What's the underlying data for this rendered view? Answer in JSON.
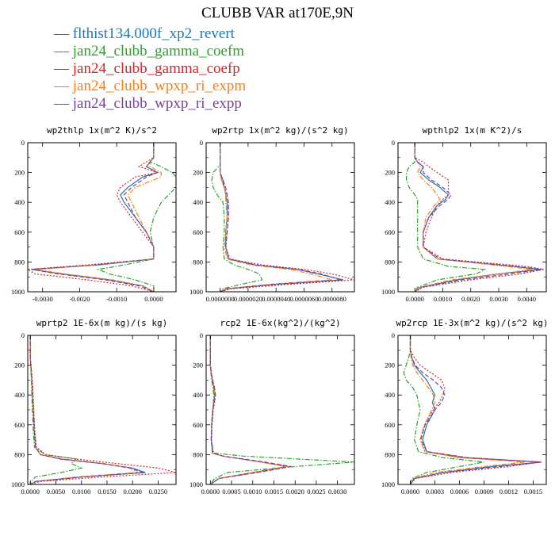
{
  "title": "CLUBB VAR at170E,9N",
  "legend": [
    {
      "name": "flthist134.000f_xp2_revert",
      "color": "#1f77b4",
      "dash": "solid"
    },
    {
      "name": "jan24_clubb_gamma_coefm",
      "color": "#2ca02c",
      "dash": "dashdot"
    },
    {
      "name": "jan24_clubb_gamma_coefp",
      "color": "#d62728",
      "dash": "dot"
    },
    {
      "name": "jan24_clubb_wpxp_ri_expm",
      "color": "#ff7f0e",
      "dash": "dashdot"
    },
    {
      "name": "jan24_clubb_wpxp_ri_expp",
      "color": "#7b3fa0",
      "dash": "dash"
    }
  ],
  "chart_data": [
    {
      "type": "line",
      "title": "wp2thlp  1x(m^2 K)/s^2",
      "xlim": [
        -0.0034,
        0.0006
      ],
      "ylim": [
        0,
        1000
      ],
      "xticks": [
        "-0.0030",
        "-0.0020",
        "-0.0010",
        "0.0000"
      ],
      "xtick_values": [
        -0.003,
        -0.002,
        -0.001,
        0.0
      ],
      "yticks": [
        "0",
        "200",
        "400",
        "600",
        "800",
        "1000"
      ],
      "y": [
        0,
        100,
        130,
        160,
        200,
        230,
        300,
        350,
        400,
        500,
        600,
        700,
        780,
        820,
        850,
        880,
        920,
        960,
        1000
      ],
      "series": [
        {
          "values": [
            0,
            0,
            -0.0001,
            -0.0002,
            0.0001,
            -0.0003,
            -0.0007,
            -0.0009,
            -0.0008,
            -0.0005,
            -0.0002,
            0.0,
            0.0,
            -0.0015,
            -0.0033,
            -0.0025,
            -0.0012,
            -0.0003,
            0
          ]
        },
        {
          "values": [
            0,
            0,
            -0.0001,
            0.0002,
            0.0005,
            0.0006,
            0.0006,
            0.0004,
            0.0002,
            0.0,
            -0.0001,
            0.0,
            0.0,
            -0.0008,
            -0.0015,
            -0.0012,
            -0.0005,
            0.0,
            0
          ]
        },
        {
          "values": [
            0,
            0,
            -0.0002,
            -0.0004,
            0.0001,
            -0.0005,
            -0.0009,
            -0.001,
            -0.0009,
            -0.0006,
            -0.0003,
            0.0,
            0.0,
            -0.0018,
            -0.0034,
            -0.0032,
            -0.0018,
            -0.0006,
            0
          ]
        },
        {
          "values": [
            0,
            0,
            -0.0001,
            -0.0001,
            0.0002,
            0.0002,
            -0.0005,
            -0.0007,
            -0.0006,
            -0.0004,
            -0.0002,
            0.0,
            0.0,
            -0.0016,
            -0.0032,
            -0.0024,
            -0.0011,
            -0.0003,
            0
          ]
        },
        {
          "values": [
            0,
            0,
            -0.0001,
            -0.0002,
            0.0001,
            -0.0002,
            -0.0006,
            -0.0008,
            -0.0007,
            -0.0005,
            -0.0002,
            0.0,
            0.0,
            -0.0016,
            -0.0033,
            -0.0026,
            -0.0013,
            -0.0004,
            0
          ]
        }
      ]
    },
    {
      "type": "line",
      "title": "wp2rtp  1x(m^2 kg)/(s^2 kg)",
      "xlim": [
        -1e-07,
        9.6e-07
      ],
      "ylim": [
        0,
        1000
      ],
      "xticks": [
        "0.0000000",
        "0.0000020",
        "0.0000040",
        "0.0000060",
        "0.0000080"
      ],
      "xtick_values": [
        0,
        2e-07,
        4e-07,
        6e-07,
        8e-07
      ],
      "yticks": [
        "0",
        "200",
        "400",
        "600",
        "800",
        "1000"
      ],
      "y": [
        0,
        150,
        200,
        250,
        300,
        350,
        400,
        500,
        600,
        700,
        780,
        820,
        850,
        880,
        920,
        950,
        980,
        1000
      ],
      "series": [
        {
          "values": [
            0,
            0,
            0,
            2e-08,
            3e-08,
            4e-08,
            5e-08,
            5e-08,
            4e-08,
            4e-08,
            6e-08,
            2.5e-07,
            5.5e-07,
            7e-07,
            8.8e-07,
            4e-07,
            5e-08,
            0
          ]
        },
        {
          "values": [
            0,
            0,
            -5e-08,
            -6e-08,
            -5e-08,
            -2e-08,
            2e-08,
            3e-08,
            3e-08,
            2e-08,
            3e-08,
            1e-07,
            2e-07,
            2.8e-07,
            3e-07,
            1.5e-07,
            2e-08,
            0
          ]
        },
        {
          "values": [
            0,
            0,
            0,
            1e-08,
            3e-08,
            5e-08,
            6e-08,
            6e-08,
            5e-08,
            4e-08,
            7e-08,
            3e-07,
            6e-07,
            8e-07,
            9.6e-07,
            5e-07,
            8e-08,
            0
          ]
        },
        {
          "values": [
            0,
            0,
            0,
            1e-08,
            3e-08,
            4e-08,
            4e-08,
            5e-08,
            4e-08,
            3e-08,
            5e-08,
            2.2e-07,
            5e-07,
            6.5e-07,
            8e-07,
            3.5e-07,
            4e-08,
            0
          ]
        },
        {
          "values": [
            0,
            0,
            0,
            2e-08,
            4e-08,
            5e-08,
            6e-08,
            6e-08,
            5e-08,
            4e-08,
            6e-08,
            2.6e-07,
            5.6e-07,
            7.2e-07,
            8.6e-07,
            3.8e-07,
            5e-08,
            0
          ]
        }
      ]
    },
    {
      "type": "line",
      "title": "wpthlp2  1x(m K^2)/s",
      "xlim": [
        -0.0006,
        0.0047
      ],
      "ylim": [
        0,
        1000
      ],
      "xticks": [
        "0.0000",
        "0.0010",
        "0.0020",
        "0.0030",
        "0.0040"
      ],
      "xtick_values": [
        0,
        0.001,
        0.002,
        0.003,
        0.004
      ],
      "yticks": [
        "0",
        "200",
        "400",
        "600",
        "800",
        "1000"
      ],
      "y": [
        0,
        100,
        130,
        160,
        200,
        250,
        300,
        350,
        380,
        420,
        500,
        600,
        700,
        780,
        830,
        850,
        880,
        920,
        970,
        1000
      ],
      "series": [
        {
          "values": [
            0,
            0,
            0.0001,
            0.0003,
            0.0002,
            0.0005,
            0.0009,
            0.0012,
            0.0011,
            0.0008,
            0.0005,
            0.0003,
            0.0003,
            0.0008,
            0.0035,
            0.0045,
            0.003,
            0.0015,
            0.0002,
            0
          ]
        },
        {
          "values": [
            0,
            0,
            0.0,
            -0.0002,
            -0.0003,
            -0.0003,
            -0.0002,
            0.0,
            0.0001,
            0.0001,
            0.0001,
            0.0001,
            0.0001,
            0.0003,
            0.0012,
            0.0025,
            0.0022,
            0.0008,
            0.0001,
            0
          ]
        },
        {
          "values": [
            0,
            0,
            0.0003,
            0.0005,
            0.0008,
            0.0012,
            0.0012,
            0.0012,
            0.001,
            0.0008,
            0.0006,
            0.0004,
            0.0003,
            0.001,
            0.004,
            0.0046,
            0.0038,
            0.002,
            0.0003,
            0
          ]
        },
        {
          "values": [
            0,
            0,
            0.0001,
            0.0002,
            0.0001,
            0.0003,
            0.0006,
            0.0008,
            0.0009,
            0.0007,
            0.0004,
            0.0003,
            0.0003,
            0.0008,
            0.0033,
            0.0042,
            0.003,
            0.0013,
            0.0002,
            0
          ]
        },
        {
          "values": [
            0,
            0,
            0.0001,
            0.0003,
            0.0003,
            0.0006,
            0.001,
            0.0013,
            0.0012,
            0.0009,
            0.0005,
            0.0003,
            0.0003,
            0.0009,
            0.0036,
            0.0046,
            0.0034,
            0.0017,
            0.0002,
            0
          ]
        }
      ]
    },
    {
      "type": "line",
      "title": "wprtp2  1E-6x(m kg)/(s kg)",
      "xlim": [
        -0.0005,
        0.0285
      ],
      "ylim": [
        0,
        1000
      ],
      "xticks": [
        "0.0000",
        "0.0050",
        "0.0100",
        "0.0150",
        "0.0200",
        "0.0250"
      ],
      "xtick_values": [
        0,
        0.005,
        0.01,
        0.015,
        0.02,
        0.025
      ],
      "yticks": [
        "0",
        "200",
        "400",
        "600",
        "800",
        "1000"
      ],
      "y": [
        0,
        150,
        300,
        500,
        650,
        750,
        800,
        830,
        860,
        890,
        920,
        950,
        980,
        1000
      ],
      "series": [
        {
          "values": [
            0,
            0,
            0.0003,
            0.0006,
            0.0008,
            0.001,
            0.002,
            0.006,
            0.014,
            0.02,
            0.0225,
            0.01,
            0.001,
            0
          ]
        },
        {
          "values": [
            0,
            0,
            0.0002,
            0.0004,
            0.0006,
            0.0008,
            0.003,
            0.009,
            0.008,
            0.01,
            0.006,
            0.001,
            0.0001,
            0
          ]
        },
        {
          "values": [
            0,
            0,
            0.0004,
            0.0007,
            0.0009,
            0.0012,
            0.003,
            0.009,
            0.017,
            0.025,
            0.0285,
            0.014,
            0.002,
            0
          ]
        },
        {
          "values": [
            0,
            0,
            0.0003,
            0.0006,
            0.0008,
            0.001,
            0.002,
            0.0065,
            0.0145,
            0.0195,
            0.021,
            0.009,
            0.001,
            0
          ]
        },
        {
          "values": [
            0,
            0,
            0.0003,
            0.0006,
            0.0008,
            0.001,
            0.002,
            0.006,
            0.014,
            0.0195,
            0.022,
            0.01,
            0.001,
            0
          ]
        }
      ]
    },
    {
      "type": "line",
      "title": "rcp2  1E-6x(kg^2)/(kg^2)",
      "xlim": [
        -0.0001,
        0.0034
      ],
      "ylim": [
        0,
        1000
      ],
      "xticks": [
        "0.0000",
        "0.0005",
        "0.0010",
        "0.0015",
        "0.0020",
        "0.0025",
        "0.0030"
      ],
      "xtick_values": [
        0,
        0.0005,
        0.001,
        0.0015,
        0.002,
        0.0025,
        0.003
      ],
      "yticks": [
        "0",
        "200",
        "400",
        "600",
        "800",
        "1000"
      ],
      "y": [
        0,
        200,
        250,
        300,
        350,
        400,
        450,
        500,
        600,
        700,
        790,
        810,
        850,
        880,
        920,
        960,
        1000
      ],
      "series": [
        {
          "values": [
            0,
            0,
            2e-05,
            5e-05,
            8e-05,
            0.0001,
            8e-05,
            6e-05,
            3e-05,
            2e-05,
            5e-05,
            0.0003,
            0.0012,
            0.0018,
            0.001,
            0.0002,
            0
          ]
        },
        {
          "values": [
            0,
            0,
            1e-05,
            3e-05,
            6e-05,
            8e-05,
            7e-05,
            5e-05,
            3e-05,
            2e-05,
            8e-05,
            0.0008,
            0.0034,
            0.002,
            0.0004,
            0.0001,
            0
          ]
        },
        {
          "values": [
            0,
            0,
            2e-05,
            6e-05,
            0.0001,
            0.00012,
            0.0001,
            7e-05,
            4e-05,
            3e-05,
            5e-05,
            0.0003,
            0.0012,
            0.0019,
            0.0011,
            0.0002,
            0
          ]
        },
        {
          "values": [
            0,
            0,
            2e-05,
            5e-05,
            8e-05,
            0.00011,
            9e-05,
            6e-05,
            3e-05,
            2e-05,
            5e-05,
            0.0003,
            0.0012,
            0.0018,
            0.001,
            0.0002,
            0
          ]
        },
        {
          "values": [
            0,
            0,
            2e-05,
            5e-05,
            9e-05,
            0.00012,
            9e-05,
            6e-05,
            3e-05,
            2e-05,
            5e-05,
            0.0003,
            0.0013,
            0.0019,
            0.0011,
            0.0002,
            0
          ]
        }
      ]
    },
    {
      "type": "line",
      "title": "wp2rcp  1E-3x(m^2 kg)/(s^2 kg)",
      "xlim": [
        -0.00015,
        0.00166
      ],
      "ylim": [
        0,
        1000
      ],
      "xticks": [
        "0.0000",
        "0.0003",
        "0.0006",
        "0.0009",
        "0.0012",
        "0.0015"
      ],
      "xtick_values": [
        0,
        0.0003,
        0.0006,
        0.0009,
        0.0012,
        0.0015
      ],
      "yticks": [
        "0",
        "200",
        "400",
        "600",
        "800",
        "1000"
      ],
      "y": [
        0,
        100,
        150,
        200,
        250,
        300,
        350,
        400,
        450,
        500,
        550,
        600,
        700,
        780,
        820,
        850,
        880,
        920,
        960,
        1000
      ],
      "series": [
        {
          "values": [
            0,
            0,
            2e-05,
            5e-05,
            0.00012,
            0.0002,
            0.00025,
            0.0003,
            0.00027,
            0.0003,
            0.00025,
            0.0002,
            0.00015,
            0.0002,
            0.0006,
            0.0016,
            0.001,
            0.0004,
            5e-05,
            0
          ]
        },
        {
          "values": [
            0,
            0,
            -2e-05,
            -5e-05,
            -8e-05,
            -5e-05,
            3e-05,
            8e-05,
            0.0001,
            0.00012,
            0.0001,
            8e-05,
            5e-05,
            0.0001,
            0.0004,
            0.0009,
            0.0006,
            0.0002,
            2e-05,
            0
          ]
        },
        {
          "values": [
            0,
            0,
            5e-05,
            0.00012,
            0.00025,
            0.00038,
            0.00042,
            0.0004,
            0.00035,
            0.00028,
            0.00022,
            0.00018,
            0.00012,
            0.00018,
            0.0007,
            0.0016,
            0.0012,
            0.0005,
            6e-05,
            0
          ]
        },
        {
          "values": [
            0,
            0,
            1e-05,
            3e-05,
            8e-05,
            0.00015,
            0.00022,
            0.00028,
            0.0003,
            0.00026,
            0.00022,
            0.00017,
            0.00012,
            0.00018,
            0.0006,
            0.0014,
            0.0009,
            0.0003,
            4e-05,
            0
          ]
        },
        {
          "values": [
            0,
            0,
            2e-05,
            6e-05,
            0.00015,
            0.00028,
            0.00038,
            0.00042,
            0.00038,
            0.0003,
            0.00024,
            0.00018,
            0.00013,
            0.0002,
            0.0007,
            0.0016,
            0.0011,
            0.0004,
            5e-05,
            0
          ]
        }
      ]
    }
  ]
}
